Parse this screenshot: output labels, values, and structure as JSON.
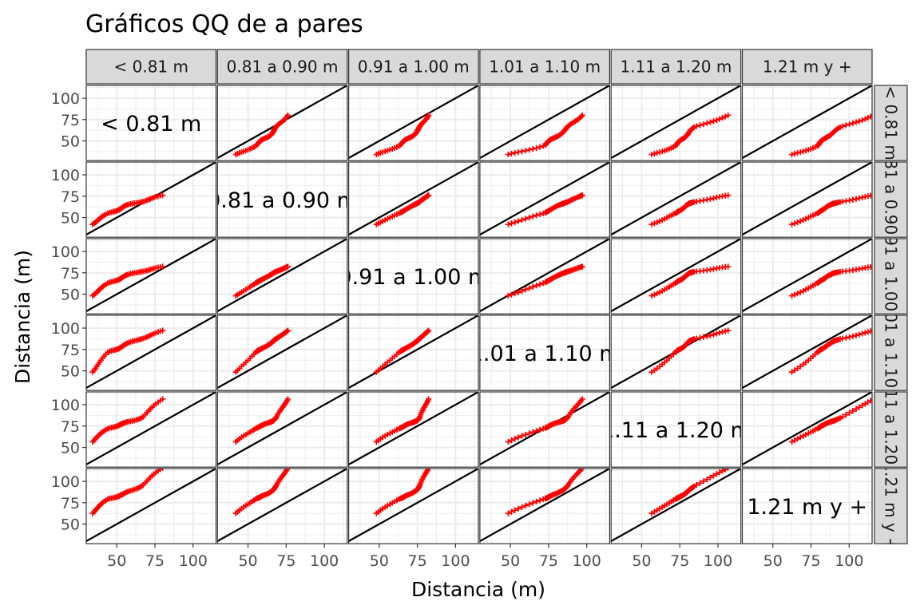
{
  "chart_data": {
    "type": "scatter",
    "title": "Gráficos QQ de a pares",
    "xlabel": "Distancia (m)",
    "ylabel": "Distancia (m)",
    "facets": [
      "< 0.81 m",
      "0.81 a 0.90 m",
      "0.91 a 1.00 m",
      "1.01 a 1.10 m",
      "1.11 a 1.20 m",
      "1.21 m y +"
    ],
    "x_ticks": [
      "50",
      "75",
      "100"
    ],
    "y_ticks": [
      "100",
      "75",
      "50"
    ],
    "xlim": [
      30,
      115
    ],
    "ylim": [
      27,
      115
    ],
    "reference_line": "y = x",
    "grid": true,
    "group_ranges": [
      {
        "name": "< 0.81 m",
        "min": 33,
        "q1": 45,
        "median": 55,
        "q3": 66,
        "max": 81
      },
      {
        "name": "0.81 a 0.90 m",
        "min": 42,
        "q1": 55,
        "median": 63,
        "q3": 69,
        "max": 76
      },
      {
        "name": "0.91 a 1.00 m",
        "min": 48,
        "q1": 63,
        "median": 71,
        "q3": 77,
        "max": 82
      },
      {
        "name": "1.01 a 1.10 m",
        "min": 48,
        "q1": 72,
        "median": 80,
        "q3": 88,
        "max": 97
      },
      {
        "name": "1.11 a 1.20 m",
        "min": 56,
        "q1": 73,
        "median": 78,
        "q3": 85,
        "max": 108
      },
      {
        "name": "1.21 m y +",
        "min": 62,
        "q1": 80,
        "median": 85,
        "q3": 95,
        "max": 117
      }
    ],
    "point_color": "#ff0000",
    "line_color": "#000000",
    "strip_fill": "#d9d9d9",
    "panel_background": "#ffffff",
    "grid_color": "#ebebeb"
  }
}
